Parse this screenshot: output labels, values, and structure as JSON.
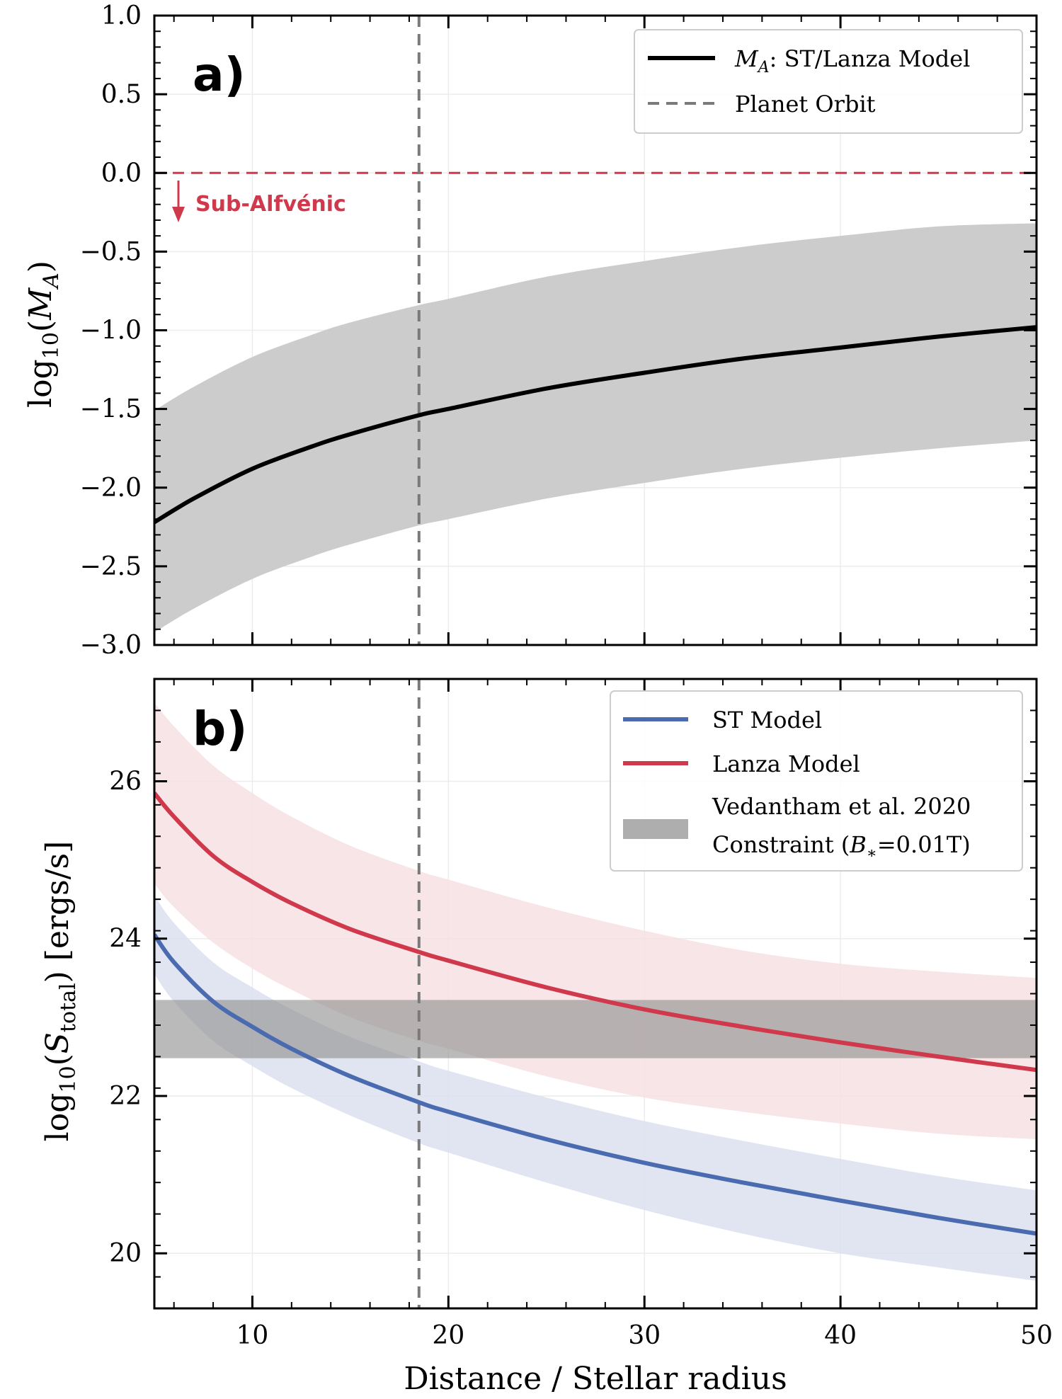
{
  "chart_data": [
    {
      "type": "line",
      "panel_label": "a)",
      "ylabel_text": "log",
      "ylabel_sub": "10",
      "ylabel_paren_open": "(",
      "ylabel_sym": "M",
      "ylabel_symsub": "A",
      "ylabel_paren_close": ")",
      "xlim": [
        5,
        50
      ],
      "ylim": [
        -3.0,
        1.0
      ],
      "yticks": [
        1.0,
        0.5,
        0.0,
        -0.5,
        -1.0,
        -1.5,
        -2.0,
        -2.5,
        -3.0
      ],
      "ytick_labels": [
        "1.0",
        "0.5",
        "0.0",
        "−0.5",
        "−1.0",
        "−1.5",
        "−2.0",
        "−2.5",
        "−3.0"
      ],
      "xticks": [
        10,
        20,
        30,
        40,
        50
      ],
      "series": [
        {
          "name": "M_A: ST/Lanza Model",
          "color": "#000000",
          "x": [
            5,
            7,
            10,
            13,
            15,
            18.5,
            20,
            25,
            30,
            35,
            40,
            45,
            50
          ],
          "y": [
            -2.22,
            -2.07,
            -1.88,
            -1.74,
            -1.66,
            -1.54,
            -1.5,
            -1.37,
            -1.27,
            -1.18,
            -1.11,
            -1.04,
            -0.98
          ],
          "band_lower": [
            -2.92,
            -2.77,
            -2.58,
            -2.44,
            -2.36,
            -2.24,
            -2.2,
            -2.07,
            -1.97,
            -1.88,
            -1.81,
            -1.75,
            -1.7
          ],
          "band_upper": [
            -1.51,
            -1.36,
            -1.17,
            -1.03,
            -0.95,
            -0.84,
            -0.8,
            -0.66,
            -0.56,
            -0.47,
            -0.4,
            -0.34,
            -0.32
          ],
          "band_color": "#cccccc"
        }
      ],
      "hlines": [
        {
          "y": 0.0,
          "color": "#d0384b",
          "style": "dashed"
        }
      ],
      "vlines": [
        {
          "x": 18.5,
          "color": "#7a7a7a",
          "style": "dashed",
          "name": "Planet Orbit"
        }
      ],
      "annotation": {
        "text": "Sub-Alfvénic",
        "color": "#d0384b"
      },
      "legend": {
        "placement": "top-right",
        "entries": [
          {
            "label_sym": "M",
            "label_sub": "A",
            "label_rest": ": ST/Lanza Model",
            "color": "#000000",
            "style": "solid"
          },
          {
            "label": "Planet Orbit",
            "color": "#7a7a7a",
            "style": "dashed"
          }
        ]
      }
    },
    {
      "type": "line",
      "panel_label": "b)",
      "ylabel_text": "log",
      "ylabel_sub": "10",
      "ylabel_paren_open": "(",
      "ylabel_sym": "S",
      "ylabel_symsub": "total",
      "ylabel_paren_close": ")",
      "ylabel_units": " [ergs/s]",
      "xlabel": "Distance / Stellar radius",
      "xlim": [
        5,
        50
      ],
      "ylim": [
        19.3,
        27.3
      ],
      "yticks": [
        20,
        22,
        24,
        26
      ],
      "ytick_labels": [
        "20",
        "22",
        "24",
        "26"
      ],
      "xticks": [
        10,
        20,
        30,
        40,
        50
      ],
      "xtick_labels": [
        "10",
        "20",
        "30",
        "40",
        "50"
      ],
      "series": [
        {
          "name": "ST Model",
          "color": "#4a6bb0",
          "x": [
            5,
            6,
            8,
            10,
            12,
            15,
            18.5,
            20,
            25,
            30,
            35,
            40,
            45,
            50
          ],
          "y": [
            24.05,
            23.7,
            23.2,
            22.88,
            22.6,
            22.25,
            21.92,
            21.8,
            21.45,
            21.15,
            20.9,
            20.67,
            20.45,
            20.25
          ],
          "band_lower": [
            23.55,
            23.2,
            22.7,
            22.38,
            22.1,
            21.75,
            21.4,
            21.28,
            20.9,
            20.55,
            20.25,
            20.0,
            19.82,
            19.65
          ],
          "band_upper": [
            24.55,
            24.2,
            23.7,
            23.38,
            23.1,
            22.75,
            22.44,
            22.32,
            21.98,
            21.68,
            21.43,
            21.2,
            20.98,
            20.8
          ],
          "band_color": "#dbe0ee"
        },
        {
          "name": "Lanza Model",
          "color": "#d0384b",
          "x": [
            5,
            6,
            8,
            10,
            12,
            15,
            18.5,
            20,
            25,
            30,
            35,
            40,
            45,
            50
          ],
          "y": [
            25.85,
            25.55,
            25.05,
            24.72,
            24.45,
            24.12,
            23.83,
            23.72,
            23.38,
            23.1,
            22.88,
            22.68,
            22.5,
            22.33
          ],
          "band_lower": [
            24.7,
            24.4,
            23.95,
            23.62,
            23.35,
            23.0,
            22.7,
            22.6,
            22.25,
            21.98,
            21.8,
            21.65,
            21.52,
            21.45
          ],
          "band_upper": [
            27.0,
            26.7,
            26.2,
            25.85,
            25.55,
            25.18,
            24.86,
            24.75,
            24.4,
            24.1,
            23.85,
            23.68,
            23.58,
            23.5
          ],
          "band_color": "#f6e0e3"
        }
      ],
      "hband": {
        "y_low": 22.48,
        "y_high": 23.22,
        "color": "#8c8c8c",
        "opacity": 0.6,
        "name": "Vedantham et al. 2020 Constraint (B*=0.01T)"
      },
      "vlines": [
        {
          "x": 18.5,
          "color": "#7a7a7a",
          "style": "dashed"
        }
      ],
      "legend": {
        "placement": "top-right",
        "entries": [
          {
            "label": "ST Model",
            "color": "#4a6bb0",
            "style": "solid"
          },
          {
            "label": "Lanza Model",
            "color": "#d0384b",
            "style": "solid"
          },
          {
            "label_line1": "Vedantham et al. 2020",
            "label_line2_pre": "Constraint (",
            "label_line2_sym": "B",
            "label_line2_sub": "∗",
            "label_line2_post": "=0.01T)",
            "color": "#8c8c8c",
            "style": "patch"
          }
        ]
      }
    }
  ]
}
